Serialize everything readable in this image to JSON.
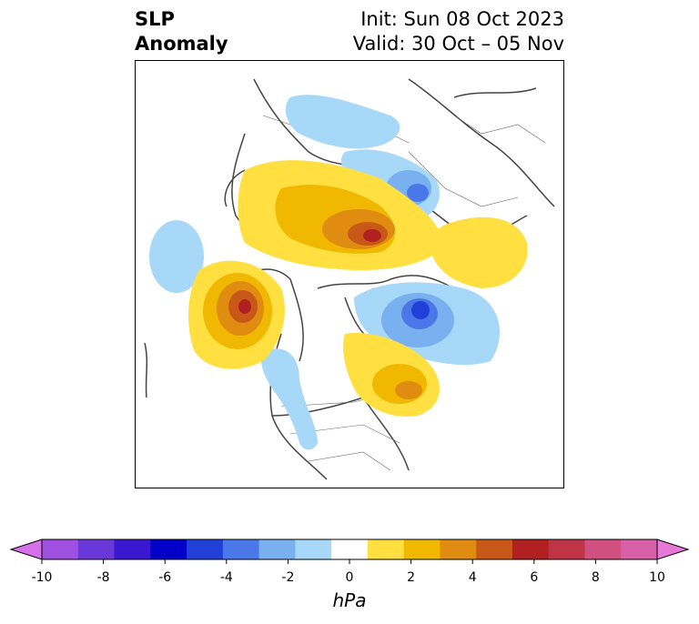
{
  "header": {
    "title_line1": "SLP",
    "title_line2": "Anomaly",
    "init": "Init: Sun 08 Oct 2023",
    "valid": "Valid: 30 Oct – 05 Nov"
  },
  "colorbar": {
    "unit": "hPa",
    "levels": [
      -10,
      -9,
      -8,
      -7,
      -6,
      -5,
      -4,
      -3,
      -2,
      -1,
      1,
      2,
      3,
      4,
      5,
      6,
      7,
      8,
      9,
      10
    ],
    "tick_labels": [
      "-10",
      "-8",
      "-6",
      "-4",
      "-2",
      "0",
      "2",
      "4",
      "6",
      "8",
      "10"
    ],
    "tick_values": [
      -10,
      -8,
      -6,
      -4,
      -2,
      0,
      2,
      4,
      6,
      8,
      10
    ],
    "colors": [
      "#d670e8",
      "#a050e0",
      "#6a38d8",
      "#3a18d0",
      "#0000c8",
      "#2040d8",
      "#4a78e8",
      "#78b0f0",
      "#a8d8f8",
      "#ffffff",
      "#ffe040",
      "#f0b800",
      "#e08c10",
      "#c85818",
      "#b02020",
      "#c03448",
      "#d05080",
      "#d860a8",
      "#e878d8"
    ]
  },
  "map_features": {
    "positive_anomalies": [
      "north-atlantic-high",
      "siberia-high",
      "eastern-asia-high",
      "northeast-canada-high"
    ],
    "negative_anomalies": [
      "northern-europe-low",
      "central-siberia-low",
      "bering-low",
      "pacific-low",
      "western-us-low"
    ]
  }
}
